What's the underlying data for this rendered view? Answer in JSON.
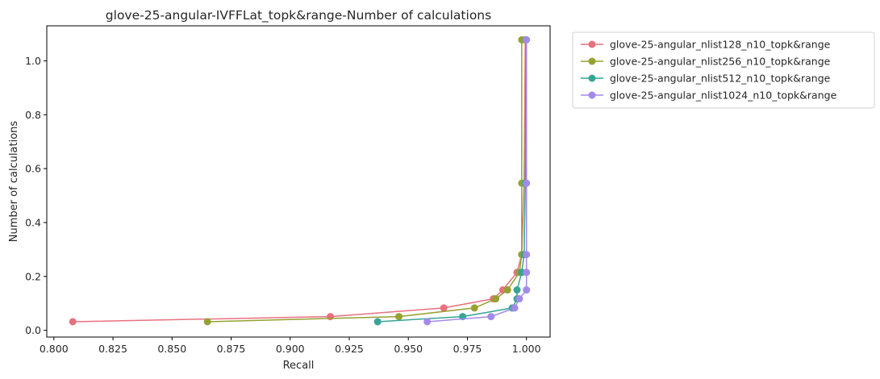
{
  "chart_data": {
    "type": "line",
    "title": "glove-25-angular-IVFFLat_topk&range-Number of calculations",
    "xlabel": "Recall",
    "ylabel": "Number of calculations",
    "xlim": [
      0.797,
      1.01
    ],
    "ylim": [
      -0.025,
      1.13
    ],
    "xticks": [
      0.8,
      0.825,
      0.85,
      0.875,
      0.9,
      0.925,
      0.95,
      0.975,
      1.0
    ],
    "xtick_labels": [
      "0.800",
      "0.825",
      "0.850",
      "0.875",
      "0.900",
      "0.925",
      "0.950",
      "0.975",
      "1.000"
    ],
    "yticks": [
      0.0,
      0.2,
      0.4,
      0.6,
      0.8,
      1.0
    ],
    "ytick_labels": [
      "0.0",
      "0.2",
      "0.4",
      "0.6",
      "0.8",
      "1.0"
    ],
    "grid": false,
    "legend_position": "outside-top-right",
    "series": [
      {
        "name": "glove-25-angular_nlist128_n10_topk&range",
        "color": "#e8717f",
        "points": [
          [
            0.808,
            0.032
          ],
          [
            0.917,
            0.051
          ],
          [
            0.965,
            0.083
          ],
          [
            0.986,
            0.117
          ],
          [
            0.99,
            0.15
          ],
          [
            0.996,
            0.215
          ],
          [
            0.998,
            0.281
          ],
          [
            0.999,
            0.546
          ],
          [
            0.9995,
            1.078
          ]
        ]
      },
      {
        "name": "glove-25-angular_nlist256_n10_topk&range",
        "color": "#96a132",
        "points": [
          [
            0.865,
            0.032
          ],
          [
            0.946,
            0.051
          ],
          [
            0.978,
            0.083
          ],
          [
            0.987,
            0.117
          ],
          [
            0.992,
            0.15
          ],
          [
            0.997,
            0.215
          ],
          [
            0.998,
            0.281
          ],
          [
            0.998,
            0.546
          ],
          [
            0.998,
            1.078
          ]
        ]
      },
      {
        "name": "glove-25-angular_nlist512_n10_topk&range",
        "color": "#36a596",
        "points": [
          [
            0.937,
            0.032
          ],
          [
            0.973,
            0.051
          ],
          [
            0.994,
            0.083
          ],
          [
            0.996,
            0.117
          ],
          [
            0.996,
            0.15
          ],
          [
            0.998,
            0.215
          ],
          [
            0.999,
            0.281
          ],
          [
            0.9995,
            0.546
          ],
          [
            0.9998,
            1.078
          ]
        ]
      },
      {
        "name": "glove-25-angular_nlist1024_n10_topk&range",
        "color": "#a48ae8",
        "points": [
          [
            0.958,
            0.032
          ],
          [
            0.985,
            0.051
          ],
          [
            0.995,
            0.083
          ],
          [
            0.997,
            0.117
          ],
          [
            1.0,
            0.15
          ],
          [
            1.0,
            0.215
          ],
          [
            1.0,
            0.281
          ],
          [
            1.0,
            0.546
          ],
          [
            1.0,
            1.078
          ]
        ]
      }
    ]
  }
}
